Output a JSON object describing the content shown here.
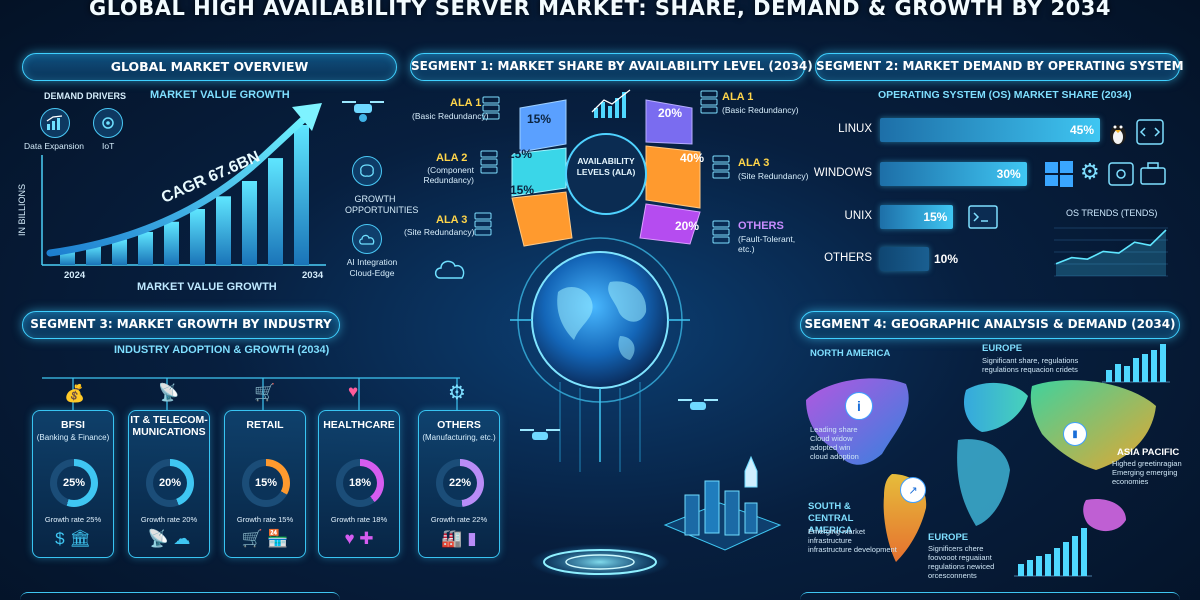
{
  "title": "GLOBAL HIGH AVAILABILITY SERVER MARKET: SHARE, DEMAND & GROWTH BY 2034",
  "overview": {
    "header": "GLOBAL MARKET OVERVIEW",
    "demand_drivers": "DEMAND DRIVERS",
    "market_value_growth_top": "MARKET VALUE GROWTH",
    "market_value_growth_bottom": "MARKET VALUE GROWTH",
    "driver_items": [
      "Data Expansion",
      "IoT"
    ],
    "cagr": "CAGR 67.6BN",
    "y_axis_label": "IN BILLIONS",
    "x_start": "2024",
    "x_end": "2034",
    "growth_opportunities": "GROWTH OPPORTUNITIES",
    "ai_integration": "AI Integration Cloud-Edge",
    "bar_values": [
      6,
      8,
      10,
      13,
      17,
      22,
      27,
      33,
      42,
      55
    ]
  },
  "segment1": {
    "header": "SEGMENT 1: MARKET SHARE BY AVAILABILITY LEVEL (2034)",
    "center_label": "AVAILABILITY LEVELS (ALA)",
    "left": [
      {
        "title": "ALA 1",
        "sub": "(Basic Redundancy)",
        "value": "15%",
        "color": "#5aa0ff"
      },
      {
        "title": "ALA 2",
        "sub": "(Component Redundancy)",
        "value": "25%",
        "color": "#3ad6e8"
      },
      {
        "title": "ALA 3",
        "sub": "(Site Redundancy)",
        "value": "15%",
        "color": "#ff9a2e"
      }
    ],
    "right": [
      {
        "title": "ALA 1",
        "sub": "(Basic Redundancy)",
        "value": "20%",
        "color": "#7a6cf0"
      },
      {
        "title": "ALA 3",
        "sub": "(Site Redundancy)",
        "value": "40%",
        "color": "#ff9a2e"
      },
      {
        "title": "OTHERS",
        "sub": "(Fault-Tolerant, etc.)",
        "value": "20%",
        "color": "#b54cf0"
      }
    ]
  },
  "segment2": {
    "header": "SEGMENT 2: MARKET DEMAND BY OPERATING SYSTEM",
    "sub": "OPERATING SYSTEM (OS) MARKET SHARE (2034)",
    "bars": [
      {
        "label": "LINUX",
        "value": 45,
        "text": "45%"
      },
      {
        "label": "WINDOWS",
        "value": 30,
        "text": "30%"
      },
      {
        "label": "UNIX",
        "value": 15,
        "text": "15%"
      },
      {
        "label": "OTHERS",
        "value": 10,
        "text": "10%"
      }
    ],
    "trends_title": "OS TRENDS (TENDS)",
    "trend_values": [
      8,
      12,
      11,
      16,
      15,
      22,
      20,
      30
    ]
  },
  "segment3": {
    "header": "SEGMENT 3: MARKET GROWTH BY INDUSTRY",
    "sub": "INDUSTRY ADOPTION & GROWTH (2034)",
    "industries": [
      {
        "title": "BFSI",
        "sub": "(Banking & Finance)",
        "value": 25,
        "text": "25%",
        "growth": "Growth rate 25%",
        "color": "#3fc6f2",
        "icons": "$ 🏛"
      },
      {
        "title": "IT & TELECOM-MUNICATIONS",
        "sub": "",
        "value": 20,
        "text": "20%",
        "growth": "Growth rate 20%",
        "color": "#3fc6f2",
        "icons": "📡 ☁"
      },
      {
        "title": "RETAIL",
        "sub": "",
        "value": 15,
        "text": "15%",
        "growth": "Growth rate 15%",
        "color": "#ff9a2e",
        "icons": "🛒 🏪"
      },
      {
        "title": "HEALTHCARE",
        "sub": "",
        "value": 18,
        "text": "18%",
        "growth": "Growth rate 18%",
        "color": "#d55cf0",
        "icons": "♥ ✚"
      },
      {
        "title": "OTHERS",
        "sub": "(Manufacturing, etc.)",
        "value": 22,
        "text": "22%",
        "growth": "Growth rate 22%",
        "color": "#b98cf7",
        "icons": "🏭 ▮"
      }
    ]
  },
  "segment4": {
    "header": "SEGMENT 4: GEOGRAPHIC ANALYSIS & DEMAND (2034)",
    "regions": {
      "north_america": {
        "title": "NORTH AMERICA",
        "text": "Leading share\nCloud widow\nadopted win\ncloud adoption"
      },
      "europe_top": {
        "title": "EUROPE",
        "text": "Significant share, regulations\nregulations requacion cridets"
      },
      "asia_pacific": {
        "title": "ASIA PACIFIC",
        "text": "Highed greetinragian\nEmerging emerging\neconomies"
      },
      "south_america": {
        "title": "SOUTH & CENTRAL AMERICA",
        "text": "Emerging market\ninfrastructure\ninfrastructure development"
      },
      "europe_bottom": {
        "title": "EUROPE",
        "text": "Significers chere\nfoovooot reguaiiant\nregulations newiced\norcesconnents"
      }
    }
  }
}
